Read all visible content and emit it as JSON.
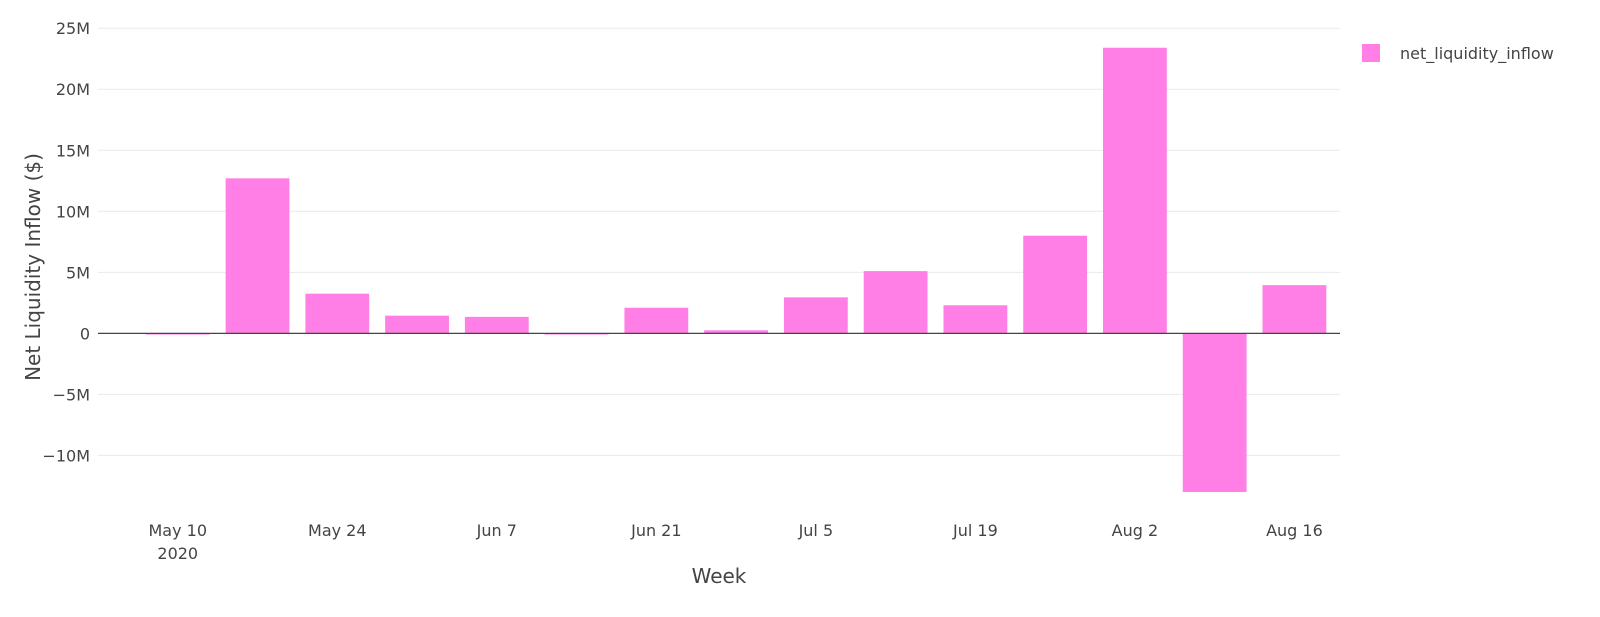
{
  "chart_data": {
    "type": "bar",
    "xlabel": "Week",
    "ylabel": "Net Liquidity Inflow ($)",
    "series": [
      {
        "name": "net_liquidity_inflow",
        "color": "#ff7fe6",
        "x": [
          "2020-05-10",
          "2020-05-17",
          "2020-05-24",
          "2020-05-31",
          "2020-06-07",
          "2020-06-14",
          "2020-06-21",
          "2020-06-28",
          "2020-07-05",
          "2020-07-12",
          "2020-07-19",
          "2020-07-26",
          "2020-08-02",
          "2020-08-09",
          "2020-08-16"
        ],
        "values": [
          -100000,
          12700000,
          3250000,
          1450000,
          1350000,
          -100000,
          2100000,
          250000,
          2950000,
          5100000,
          2300000,
          8000000,
          23400000,
          -13000000,
          3950000
        ]
      }
    ],
    "ylim": [
      -14800000,
      26000000
    ],
    "xlim": [
      "2020-05-03",
      "2020-08-20"
    ],
    "y_ticks": [
      {
        "value": -10000000,
        "label": "−10M"
      },
      {
        "value": -5000000,
        "label": "−5M"
      },
      {
        "value": 0,
        "label": "0"
      },
      {
        "value": 5000000,
        "label": "5M"
      },
      {
        "value": 10000000,
        "label": "10M"
      },
      {
        "value": 15000000,
        "label": "15M"
      },
      {
        "value": 20000000,
        "label": "20M"
      },
      {
        "value": 25000000,
        "label": "25M"
      }
    ],
    "x_ticks": [
      {
        "value": "2020-05-10",
        "label": "May 10",
        "sublabel": "2020"
      },
      {
        "value": "2020-05-24",
        "label": "May 24",
        "sublabel": ""
      },
      {
        "value": "2020-06-07",
        "label": "Jun 7",
        "sublabel": ""
      },
      {
        "value": "2020-06-21",
        "label": "Jun 21",
        "sublabel": ""
      },
      {
        "value": "2020-07-05",
        "label": "Jul 5",
        "sublabel": ""
      },
      {
        "value": "2020-07-19",
        "label": "Jul 19",
        "sublabel": ""
      },
      {
        "value": "2020-08-02",
        "label": "Aug 2",
        "sublabel": ""
      },
      {
        "value": "2020-08-16",
        "label": "Aug 16",
        "sublabel": ""
      }
    ],
    "grid": true,
    "legend_position": "top-right"
  }
}
